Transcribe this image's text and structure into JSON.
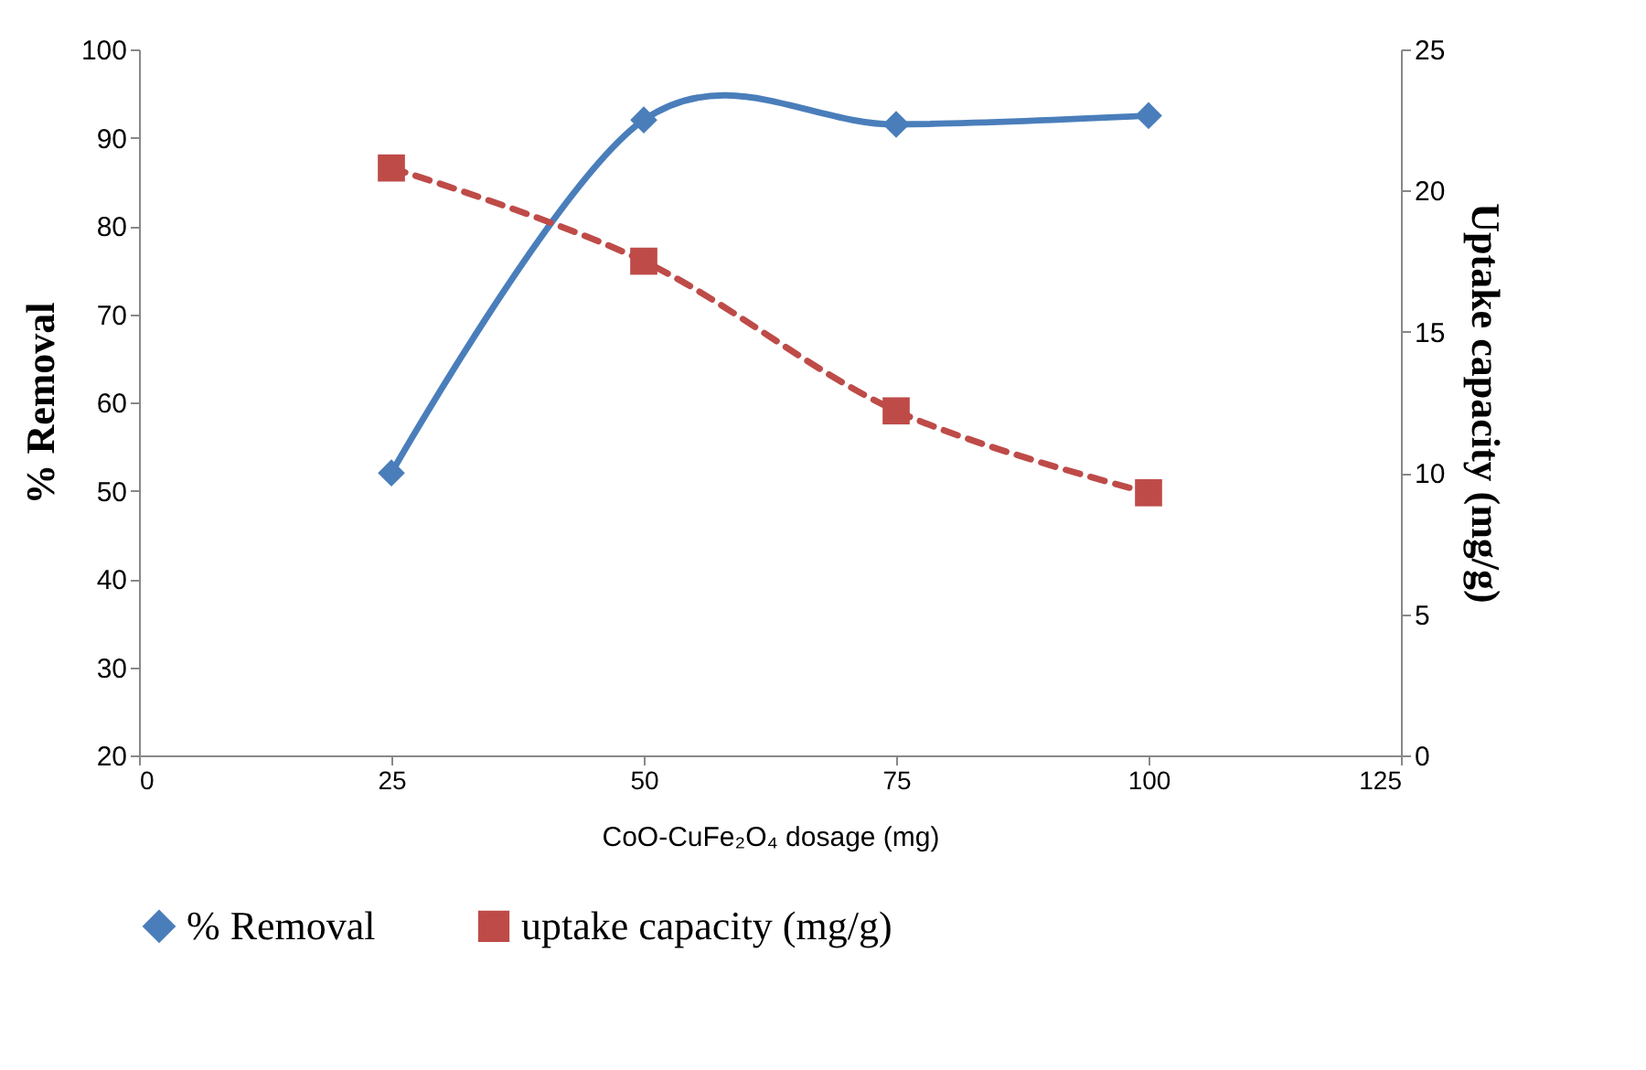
{
  "chart_data": {
    "type": "line",
    "xlabel": "CoO-CuFe₂O₄ dosage (mg)",
    "ylabel": "% Removal",
    "y2label": "Uptake capacity (mg/g)",
    "x": [
      25,
      50,
      75,
      100
    ],
    "series": [
      {
        "name": "% Removal",
        "color": "#4a7ebb",
        "values": [
          52,
          92,
          91.5,
          92.5
        ],
        "marker": "diamond",
        "line_style": "solid"
      },
      {
        "name": "uptake capacity (mg/g)",
        "color": "#be4b48",
        "values": [
          20.8,
          17.5,
          12.2,
          9.3
        ],
        "axis": "y2",
        "marker": "square",
        "line_style": "dashed"
      }
    ],
    "xlim": [
      0,
      125
    ],
    "xticks": [
      0,
      25,
      50,
      75,
      100,
      125
    ],
    "ylim": [
      20,
      100
    ],
    "yticks": [
      20,
      30,
      40,
      50,
      60,
      70,
      80,
      90,
      100
    ],
    "y2lim": [
      0,
      25
    ],
    "y2ticks": [
      0,
      5,
      10,
      15,
      20,
      25
    ],
    "grid": false,
    "legend": "bottom"
  }
}
